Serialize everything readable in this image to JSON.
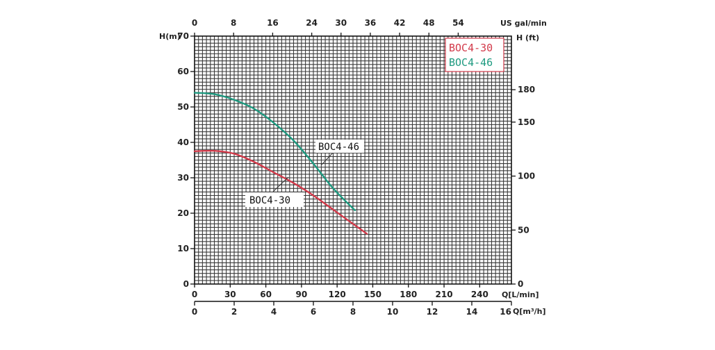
{
  "chart_data": {
    "type": "line",
    "grid": true,
    "legend_position": "top-right",
    "axes": {
      "y_left": {
        "label": "H(m)",
        "range": [
          0,
          70
        ],
        "ticks": [
          0,
          10,
          20,
          30,
          40,
          50,
          60,
          70
        ]
      },
      "y_right": {
        "label": "H (ft)",
        "range": [
          0,
          229.66
        ],
        "ticks": [
          0,
          50,
          100,
          150,
          180
        ]
      },
      "x_top": {
        "label": "US gal/min",
        "range": [
          0,
          64.9
        ],
        "ticks": [
          0,
          8,
          16,
          24,
          30,
          36,
          42,
          48,
          54
        ]
      },
      "x_bottom": {
        "label": "Q[L/min]",
        "range": [
          0,
          266.7
        ],
        "ticks": [
          0,
          30,
          60,
          90,
          120,
          150,
          180,
          210,
          240
        ]
      },
      "x_bottom2": {
        "label": "Q[m³/h]",
        "range": [
          0,
          16
        ],
        "ticks": [
          0,
          2,
          4,
          6,
          8,
          10,
          12,
          14,
          16
        ]
      }
    },
    "series": [
      {
        "name": "BOC4-30",
        "color": "#d23a4a",
        "x_m3h": [
          0,
          1,
          2,
          3,
          4,
          5,
          6,
          7,
          8,
          8.7
        ],
        "y_m": [
          37.5,
          37.6,
          36.8,
          34.5,
          31.5,
          28.5,
          25,
          21,
          17,
          14.2
        ]
      },
      {
        "name": "BOC4-46",
        "color": "#1e9a80",
        "x_m3h": [
          0,
          1,
          2,
          3,
          4,
          5,
          6,
          7,
          8.1
        ],
        "y_m": [
          54,
          53.6,
          52,
          49.5,
          45.5,
          40.5,
          34,
          27,
          20.8
        ]
      }
    ],
    "legend": [
      "BOC4-30",
      "BOC4-46"
    ],
    "callouts": [
      "BOC4-46",
      "BOC4-30"
    ]
  }
}
